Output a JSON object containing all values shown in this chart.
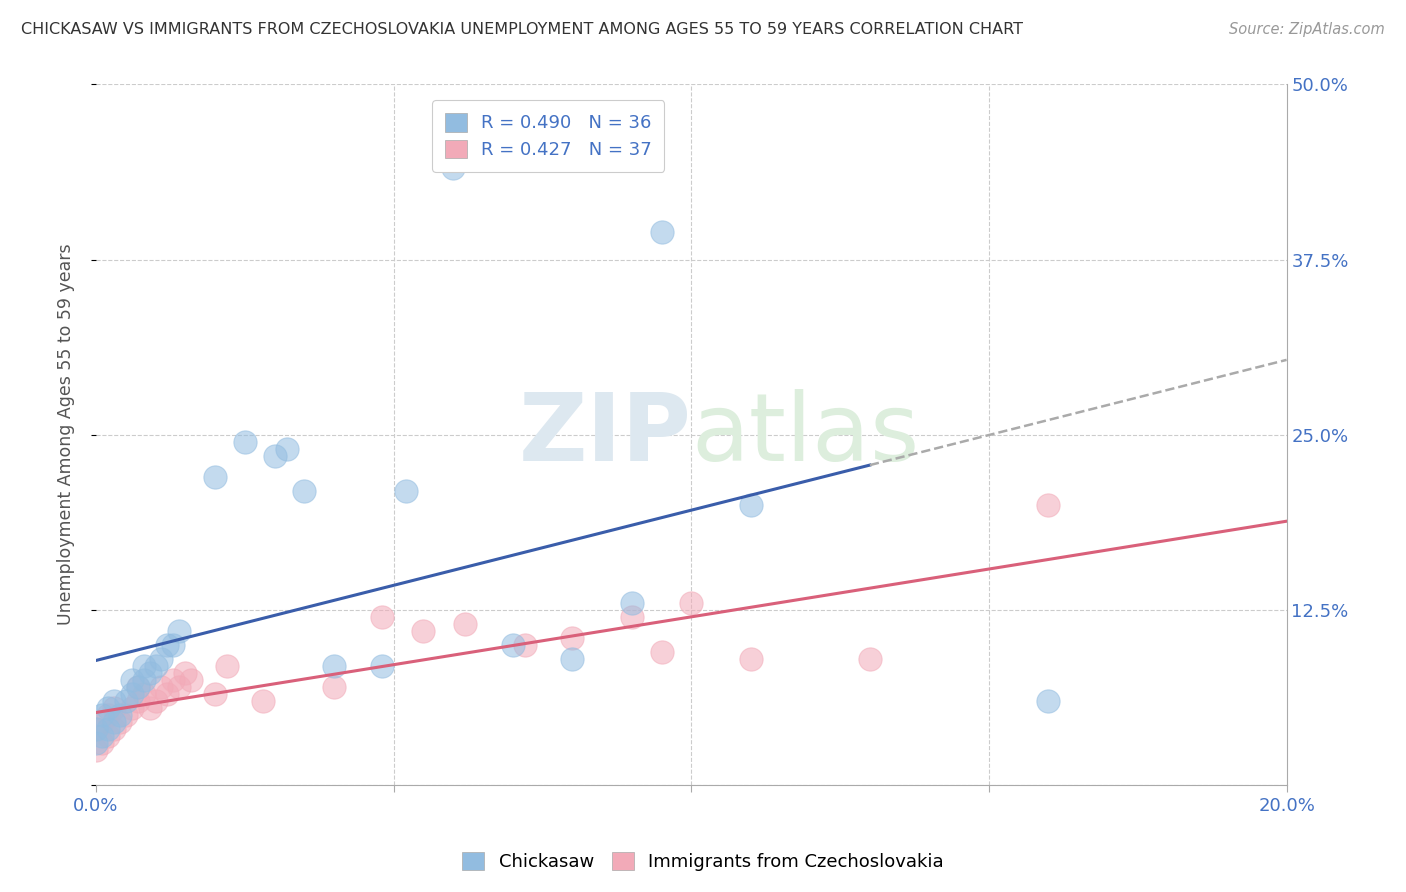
{
  "title": "CHICKASAW VS IMMIGRANTS FROM CZECHOSLOVAKIA UNEMPLOYMENT AMONG AGES 55 TO 59 YEARS CORRELATION CHART",
  "source": "Source: ZipAtlas.com",
  "ylabel": "Unemployment Among Ages 55 to 59 years",
  "xlim": [
    0.0,
    0.2
  ],
  "ylim": [
    0.0,
    0.5
  ],
  "yticks": [
    0.0,
    0.125,
    0.25,
    0.375,
    0.5
  ],
  "yticklabels_right": [
    "",
    "12.5%",
    "25.0%",
    "37.5%",
    "50.0%"
  ],
  "xtick_left_label": "0.0%",
  "xtick_right_label": "20.0%",
  "legend_r1": "R = 0.490",
  "legend_n1": "N = 36",
  "legend_r2": "R = 0.427",
  "legend_n2": "N = 37",
  "color_blue": "#92bce0",
  "color_pink": "#f2aab8",
  "color_blue_line": "#3a5daa",
  "color_pink_line": "#d9607a",
  "watermark": "ZIPatlas",
  "chickasaw_x": [
    0.0,
    0.0,
    0.001,
    0.001,
    0.002,
    0.002,
    0.003,
    0.003,
    0.004,
    0.005,
    0.006,
    0.006,
    0.007,
    0.008,
    0.008,
    0.009,
    0.01,
    0.011,
    0.012,
    0.013,
    0.014,
    0.02,
    0.025,
    0.03,
    0.032,
    0.035,
    0.04,
    0.048,
    0.052,
    0.06,
    0.07,
    0.08,
    0.09,
    0.095,
    0.11,
    0.16
  ],
  "chickasaw_y": [
    0.03,
    0.04,
    0.035,
    0.05,
    0.04,
    0.055,
    0.045,
    0.06,
    0.05,
    0.06,
    0.065,
    0.075,
    0.07,
    0.075,
    0.085,
    0.08,
    0.085,
    0.09,
    0.1,
    0.1,
    0.11,
    0.22,
    0.245,
    0.235,
    0.24,
    0.21,
    0.085,
    0.085,
    0.21,
    0.44,
    0.1,
    0.09,
    0.13,
    0.395,
    0.2,
    0.06
  ],
  "czech_x": [
    0.0,
    0.0,
    0.001,
    0.001,
    0.002,
    0.002,
    0.003,
    0.003,
    0.004,
    0.005,
    0.006,
    0.007,
    0.007,
    0.008,
    0.009,
    0.01,
    0.011,
    0.012,
    0.013,
    0.014,
    0.015,
    0.016,
    0.02,
    0.022,
    0.028,
    0.04,
    0.048,
    0.055,
    0.062,
    0.072,
    0.08,
    0.09,
    0.095,
    0.1,
    0.11,
    0.13,
    0.16
  ],
  "czech_y": [
    0.025,
    0.04,
    0.03,
    0.045,
    0.035,
    0.05,
    0.04,
    0.055,
    0.045,
    0.05,
    0.055,
    0.06,
    0.07,
    0.065,
    0.055,
    0.06,
    0.07,
    0.065,
    0.075,
    0.07,
    0.08,
    0.075,
    0.065,
    0.085,
    0.06,
    0.07,
    0.12,
    0.11,
    0.115,
    0.1,
    0.105,
    0.12,
    0.095,
    0.13,
    0.09,
    0.09,
    0.2
  ],
  "blue_line_solid_end_x": 0.13,
  "pink_line_solid_end_x": 0.2,
  "grid_color": "#cccccc",
  "axis_label_color": "#4472C4",
  "ylabel_color": "#555555"
}
